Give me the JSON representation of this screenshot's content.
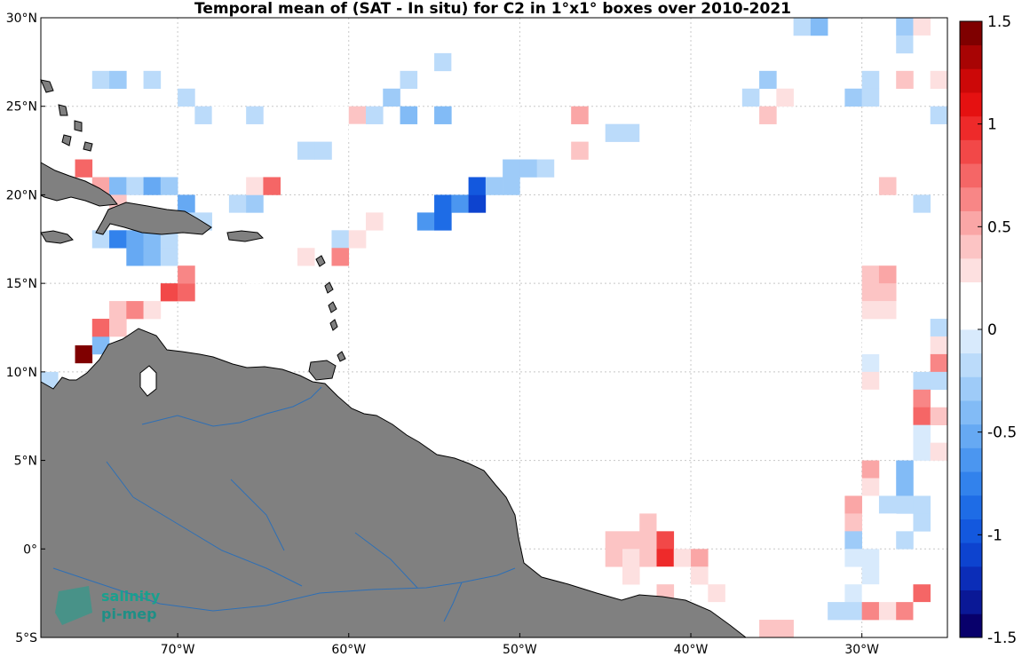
{
  "title": "Temporal mean of (SAT - In situ) for C2 in 1°x1° boxes over 2010-2021",
  "map": {
    "lon_range": [
      -78,
      -25
    ],
    "lat_range": [
      -5,
      30
    ],
    "lon_ticks": [
      {
        "value": -70,
        "deg": "70",
        "dir": "W"
      },
      {
        "value": -60,
        "deg": "60",
        "dir": "W"
      },
      {
        "value": -50,
        "deg": "50",
        "dir": "W"
      },
      {
        "value": -40,
        "deg": "40",
        "dir": "W"
      },
      {
        "value": -30,
        "deg": "30",
        "dir": "W"
      }
    ],
    "lat_ticks": [
      {
        "value": 30,
        "deg": "30",
        "dir": "N"
      },
      {
        "value": 25,
        "deg": "25",
        "dir": "N"
      },
      {
        "value": 20,
        "deg": "20",
        "dir": "N"
      },
      {
        "value": 15,
        "deg": "15",
        "dir": "N"
      },
      {
        "value": 10,
        "deg": "10",
        "dir": "N"
      },
      {
        "value": 5,
        "deg": "5",
        "dir": "N"
      },
      {
        "value": 0,
        "deg": "0",
        "dir": ""
      },
      {
        "value": -5,
        "deg": "5",
        "dir": "S"
      }
    ],
    "grid": true,
    "land_color": "#808080",
    "river_color": "#2e6fb5",
    "coast_color": "#000000"
  },
  "colorbar": {
    "min": -1.5,
    "max": 1.5,
    "ticks": [
      {
        "value": 1.5,
        "label": "1.5"
      },
      {
        "value": 1,
        "label": "1"
      },
      {
        "value": 0.5,
        "label": "0.5"
      },
      {
        "value": 0,
        "label": "0"
      },
      {
        "value": -0.5,
        "label": "-0.5"
      },
      {
        "value": -1,
        "label": "-1"
      },
      {
        "value": -1.5,
        "label": "-1.5"
      }
    ],
    "colors": [
      "#08006b",
      "#0a1896",
      "#0b2db8",
      "#0d43cf",
      "#1358de",
      "#1e6ce6",
      "#3282ec",
      "#4b96f0",
      "#66a9f3",
      "#82bbf6",
      "#9ecbf8",
      "#bbdbfa",
      "#d8eafc",
      "#ffffff",
      "#ffffff",
      "#fde0e0",
      "#fcc4c4",
      "#faa6a6",
      "#f88686",
      "#f56666",
      "#f24848",
      "#ee2a2a",
      "#e51111",
      "#cc0808",
      "#a80404",
      "#7f0000"
    ]
  },
  "chart_data": {
    "type": "heatmap",
    "title": "Temporal mean of (SAT - In situ) for C2 in 1°x1° boxes over 2010-2021",
    "xlabel": "",
    "ylabel": "",
    "xlim": [
      -78,
      -25
    ],
    "ylim": [
      -5,
      30
    ],
    "cell_size_deg": 1,
    "colorbar_range": [
      -1.5,
      1.5
    ],
    "cells": [
      {
        "lon": -77.5,
        "lat": 9.5,
        "value": -0.2
      },
      {
        "lon": -75.5,
        "lat": 11.0,
        "value": 1.45
      },
      {
        "lon": -74.5,
        "lat": 11.5,
        "value": -0.4
      },
      {
        "lon": -74.5,
        "lat": 12.5,
        "value": 0.75
      },
      {
        "lon": -73.5,
        "lat": 12.5,
        "value": 0.45
      },
      {
        "lon": -73.5,
        "lat": 13.5,
        "value": 0.35
      },
      {
        "lon": -72.5,
        "lat": 13.5,
        "value": 0.65
      },
      {
        "lon": -71.5,
        "lat": 13.5,
        "value": 0.3
      },
      {
        "lon": -70.5,
        "lat": 14.5,
        "value": 0.85
      },
      {
        "lon": -69.5,
        "lat": 14.5,
        "value": 0.75
      },
      {
        "lon": -69.5,
        "lat": 15.5,
        "value": 0.6
      },
      {
        "lon": -74.5,
        "lat": 17.5,
        "value": -0.2
      },
      {
        "lon": -73.5,
        "lat": 17.5,
        "value": -0.7
      },
      {
        "lon": -72.5,
        "lat": 17.5,
        "value": -0.5
      },
      {
        "lon": -71.5,
        "lat": 17.5,
        "value": -0.4
      },
      {
        "lon": -70.5,
        "lat": 17.5,
        "value": -0.2
      },
      {
        "lon": -72.5,
        "lat": 16.5,
        "value": -0.55
      },
      {
        "lon": -71.5,
        "lat": 16.5,
        "value": -0.45
      },
      {
        "lon": -70.5,
        "lat": 16.5,
        "value": -0.2
      },
      {
        "lon": -75.5,
        "lat": 21.5,
        "value": 0.7
      },
      {
        "lon": -74.5,
        "lat": 20.5,
        "value": 0.55
      },
      {
        "lon": -73.5,
        "lat": 20.5,
        "value": -0.4
      },
      {
        "lon": -72.5,
        "lat": 20.5,
        "value": -0.15
      },
      {
        "lon": -71.5,
        "lat": 20.5,
        "value": -0.5
      },
      {
        "lon": -70.5,
        "lat": 20.5,
        "value": -0.3
      },
      {
        "lon": -73.5,
        "lat": 19.5,
        "value": 0.35
      },
      {
        "lon": -69.5,
        "lat": 19.5,
        "value": -0.55
      },
      {
        "lon": -69.5,
        "lat": 18.5,
        "value": -0.15
      },
      {
        "lon": -68.5,
        "lat": 18.5,
        "value": -0.15
      },
      {
        "lon": -74.5,
        "lat": 26.5,
        "value": -0.15
      },
      {
        "lon": -73.5,
        "lat": 26.5,
        "value": -0.25
      },
      {
        "lon": -71.5,
        "lat": 26.5,
        "value": -0.15
      },
      {
        "lon": -69.5,
        "lat": 25.5,
        "value": -0.15
      },
      {
        "lon": -68.5,
        "lat": 24.5,
        "value": -0.15
      },
      {
        "lon": -67.5,
        "lat": 24.5,
        "value": 0.2
      },
      {
        "lon": -65.5,
        "lat": 24.5,
        "value": -0.15
      },
      {
        "lon": -62.5,
        "lat": 22.5,
        "value": -0.15
      },
      {
        "lon": -61.5,
        "lat": 22.5,
        "value": -0.15
      },
      {
        "lon": -66.5,
        "lat": 19.5,
        "value": -0.15
      },
      {
        "lon": -65.5,
        "lat": 19.5,
        "value": -0.25
      },
      {
        "lon": -65.5,
        "lat": 20.5,
        "value": 0.3
      },
      {
        "lon": -64.5,
        "lat": 20.5,
        "value": 0.7
      },
      {
        "lon": -65.5,
        "lat": 15.5,
        "value": 0.2
      },
      {
        "lon": -62.5,
        "lat": 16.5,
        "value": 0.25
      },
      {
        "lon": -60.5,
        "lat": 17.5,
        "value": -0.15
      },
      {
        "lon": -60.5,
        "lat": 16.5,
        "value": 0.65
      },
      {
        "lon": -59.5,
        "lat": 17.5,
        "value": 0.3
      },
      {
        "lon": -58.5,
        "lat": 18.5,
        "value": 0.25
      },
      {
        "lon": -61.5,
        "lat": 24.5,
        "value": 0.2
      },
      {
        "lon": -60.5,
        "lat": 24.5,
        "value": 0.2
      },
      {
        "lon": -59.5,
        "lat": 24.5,
        "value": 0.35
      },
      {
        "lon": -59.5,
        "lat": 23.5,
        "value": 0.2
      },
      {
        "lon": -58.5,
        "lat": 24.5,
        "value": -0.15
      },
      {
        "lon": -57.5,
        "lat": 25.5,
        "value": -0.25
      },
      {
        "lon": -56.5,
        "lat": 26.5,
        "value": -0.15
      },
      {
        "lon": -56.5,
        "lat": 24.5,
        "value": -0.45
      },
      {
        "lon": -54.5,
        "lat": 24.5,
        "value": -0.45
      },
      {
        "lon": -54.5,
        "lat": 27.5,
        "value": -0.15
      },
      {
        "lon": -53.5,
        "lat": 27.5,
        "value": 0.2
      },
      {
        "lon": -55.5,
        "lat": 18.5,
        "value": -0.6
      },
      {
        "lon": -54.5,
        "lat": 18.5,
        "value": -0.9
      },
      {
        "lon": -54.5,
        "lat": 19.5,
        "value": -0.9
      },
      {
        "lon": -53.5,
        "lat": 19.5,
        "value": -0.6
      },
      {
        "lon": -52.5,
        "lat": 19.5,
        "value": -1.1
      },
      {
        "lon": -52.5,
        "lat": 20.5,
        "value": -1.0
      },
      {
        "lon": -51.5,
        "lat": 20.5,
        "value": -0.3
      },
      {
        "lon": -50.5,
        "lat": 20.5,
        "value": -0.3
      },
      {
        "lon": -50.5,
        "lat": 21.5,
        "value": -0.25
      },
      {
        "lon": -49.5,
        "lat": 21.5,
        "value": -0.25
      },
      {
        "lon": -48.5,
        "lat": 21.5,
        "value": -0.15
      },
      {
        "lon": -51.5,
        "lat": 24.5,
        "value": 0.2
      },
      {
        "lon": -50.5,
        "lat": 24.5,
        "value": 0.2
      },
      {
        "lon": -46.5,
        "lat": 24.5,
        "value": 0.5
      },
      {
        "lon": -46.5,
        "lat": 22.5,
        "value": 0.4
      },
      {
        "lon": -44.5,
        "lat": 23.5,
        "value": -0.15
      },
      {
        "lon": -43.5,
        "lat": 23.5,
        "value": -0.15
      },
      {
        "lon": -42.5,
        "lat": 23.5,
        "value": 0.2
      },
      {
        "lon": -39.5,
        "lat": 23.5,
        "value": 0.2
      },
      {
        "lon": -36.5,
        "lat": 25.5,
        "value": -0.15
      },
      {
        "lon": -35.5,
        "lat": 26.5,
        "value": -0.3
      },
      {
        "lon": -35.5,
        "lat": 24.5,
        "value": 0.45
      },
      {
        "lon": -34.5,
        "lat": 25.5,
        "value": 0.25
      },
      {
        "lon": -33.5,
        "lat": 29.5,
        "value": -0.15
      },
      {
        "lon": -32.5,
        "lat": 29.5,
        "value": -0.35
      },
      {
        "lon": -32.5,
        "lat": 27.5,
        "value": 0.2
      },
      {
        "lon": -30.5,
        "lat": 25.5,
        "value": -0.3
      },
      {
        "lon": -29.5,
        "lat": 26.5,
        "value": -0.15
      },
      {
        "lon": -29.5,
        "lat": 25.5,
        "value": -0.15
      },
      {
        "lon": -27.5,
        "lat": 29.5,
        "value": -0.3
      },
      {
        "lon": -27.5,
        "lat": 28.5,
        "value": -0.15
      },
      {
        "lon": -26.5,
        "lat": 29.5,
        "value": 0.3
      },
      {
        "lon": -26.5,
        "lat": 28.5,
        "value": 0.2
      },
      {
        "lon": -27.5,
        "lat": 26.5,
        "value": 0.45
      },
      {
        "lon": -25.5,
        "lat": 26.5,
        "value": 0.3
      },
      {
        "lon": -25.5,
        "lat": 24.5,
        "value": -0.2
      },
      {
        "lon": -27.5,
        "lat": 21.5,
        "value": 0.2
      },
      {
        "lon": -28.5,
        "lat": 20.5,
        "value": 0.45
      },
      {
        "lon": -28.5,
        "lat": 18.5,
        "value": 0.2
      },
      {
        "lon": -26.5,
        "lat": 19.5,
        "value": -0.15
      },
      {
        "lon": -29.5,
        "lat": 17.5,
        "value": 0.2
      },
      {
        "lon": -29.5,
        "lat": 16.5,
        "value": 0.2
      },
      {
        "lon": -28.5,
        "lat": 16.5,
        "value": 0.2
      },
      {
        "lon": -29.5,
        "lat": 15.5,
        "value": 0.35
      },
      {
        "lon": -28.5,
        "lat": 15.5,
        "value": 0.5
      },
      {
        "lon": -29.5,
        "lat": 14.5,
        "value": 0.4
      },
      {
        "lon": -28.5,
        "lat": 14.5,
        "value": 0.35
      },
      {
        "lon": -29.5,
        "lat": 13.5,
        "value": 0.3
      },
      {
        "lon": -28.5,
        "lat": 13.5,
        "value": 0.3
      },
      {
        "lon": -29.5,
        "lat": 11.5,
        "value": 0.2
      },
      {
        "lon": -29.5,
        "lat": 10.5,
        "value": -0.1
      },
      {
        "lon": -29.5,
        "lat": 9.5,
        "value": 0.3
      },
      {
        "lon": -29.5,
        "lat": 8.5,
        "value": 0.2
      },
      {
        "lon": -29.5,
        "lat": 7.5,
        "value": 0.2
      },
      {
        "lon": -25.5,
        "lat": 12.5,
        "value": -0.2
      },
      {
        "lon": -25.5,
        "lat": 11.5,
        "value": 0.3
      },
      {
        "lon": -25.5,
        "lat": 10.5,
        "value": 0.6
      },
      {
        "lon": -25.5,
        "lat": 9.5,
        "value": -0.2
      },
      {
        "lon": -26.5,
        "lat": 9.5,
        "value": -0.15
      },
      {
        "lon": -26.5,
        "lat": 8.5,
        "value": 0.6
      },
      {
        "lon": -26.5,
        "lat": 7.5,
        "value": 0.8
      },
      {
        "lon": -25.5,
        "lat": 7.5,
        "value": 0.4
      },
      {
        "lon": -26.5,
        "lat": 6.5,
        "value": -0.1
      },
      {
        "lon": -26.5,
        "lat": 5.5,
        "value": -0.1
      },
      {
        "lon": -25.5,
        "lat": 5.5,
        "value": 0.3
      },
      {
        "lon": -29.5,
        "lat": 4.5,
        "value": 0.5
      },
      {
        "lon": -29.5,
        "lat": 3.5,
        "value": 0.3
      },
      {
        "lon": -29.5,
        "lat": 2.5,
        "value": 0.2
      },
      {
        "lon": -27.5,
        "lat": 4.5,
        "value": -0.4
      },
      {
        "lon": -27.5,
        "lat": 3.5,
        "value": -0.4
      },
      {
        "lon": -28.5,
        "lat": 2.5,
        "value": -0.15
      },
      {
        "lon": -27.5,
        "lat": 2.5,
        "value": -0.15
      },
      {
        "lon": -26.5,
        "lat": 2.5,
        "value": -0.15
      },
      {
        "lon": -30.5,
        "lat": 2.5,
        "value": 0.55
      },
      {
        "lon": -30.5,
        "lat": 1.5,
        "value": 0.45
      },
      {
        "lon": -30.5,
        "lat": 0.5,
        "value": -0.3
      },
      {
        "lon": -30.5,
        "lat": -0.5,
        "value": -0.1
      },
      {
        "lon": -29.5,
        "lat": -0.5,
        "value": -0.1
      },
      {
        "lon": -28.5,
        "lat": 1.5,
        "value": 0.2
      },
      {
        "lon": -27.5,
        "lat": 0.5,
        "value": -0.15
      },
      {
        "lon": -26.5,
        "lat": 1.5,
        "value": -0.15
      },
      {
        "lon": -29.5,
        "lat": -1.5,
        "value": -0.1
      },
      {
        "lon": -27.5,
        "lat": -1.5,
        "value": 0.2
      },
      {
        "lon": -30.5,
        "lat": -2.5,
        "value": -0.1
      },
      {
        "lon": -29.5,
        "lat": -2.5,
        "value": 0.2
      },
      {
        "lon": -28.5,
        "lat": -2.5,
        "value": 0.2
      },
      {
        "lon": -27.5,
        "lat": -2.5,
        "value": 0.2
      },
      {
        "lon": -26.5,
        "lat": -2.5,
        "value": 0.75
      },
      {
        "lon": -31.5,
        "lat": -3.5,
        "value": -0.15
      },
      {
        "lon": -30.5,
        "lat": -3.5,
        "value": -0.15
      },
      {
        "lon": -29.5,
        "lat": -3.5,
        "value": 0.6
      },
      {
        "lon": -28.5,
        "lat": -3.5,
        "value": 0.3
      },
      {
        "lon": -27.5,
        "lat": -3.5,
        "value": 0.6
      },
      {
        "lon": -26.5,
        "lat": -3.5,
        "value": 0.2
      },
      {
        "lon": -42.5,
        "lat": 1.5,
        "value": 0.45
      },
      {
        "lon": -41.5,
        "lat": 1.5,
        "value": 0.2
      },
      {
        "lon": -39.5,
        "lat": 1.5,
        "value": 0.2
      },
      {
        "lon": -44.5,
        "lat": 0.5,
        "value": 0.35
      },
      {
        "lon": -43.5,
        "lat": 0.5,
        "value": 0.45
      },
      {
        "lon": -42.5,
        "lat": 0.5,
        "value": 0.35
      },
      {
        "lon": -41.5,
        "lat": 0.5,
        "value": 0.9
      },
      {
        "lon": -44.5,
        "lat": -0.5,
        "value": 0.35
      },
      {
        "lon": -43.5,
        "lat": -0.5,
        "value": 0.3
      },
      {
        "lon": -42.5,
        "lat": -0.5,
        "value": 0.35
      },
      {
        "lon": -41.5,
        "lat": -0.5,
        "value": 0.95
      },
      {
        "lon": -40.5,
        "lat": -0.5,
        "value": 0.3
      },
      {
        "lon": -39.5,
        "lat": -0.5,
        "value": 0.55
      },
      {
        "lon": -43.5,
        "lat": -1.5,
        "value": 0.25
      },
      {
        "lon": -41.5,
        "lat": -1.5,
        "value": 0.2
      },
      {
        "lon": -39.5,
        "lat": -1.5,
        "value": 0.3
      },
      {
        "lon": -41.5,
        "lat": -2.5,
        "value": 0.35
      },
      {
        "lon": -38.5,
        "lat": -2.5,
        "value": 0.25
      },
      {
        "lon": -38.5,
        "lat": -3.5,
        "value": 0.2
      },
      {
        "lon": -35.5,
        "lat": -4.5,
        "value": 0.4
      },
      {
        "lon": -34.5,
        "lat": -4.5,
        "value": 0.4
      }
    ]
  },
  "logo": {
    "line1": "salinity",
    "line2": "pi-mep"
  }
}
